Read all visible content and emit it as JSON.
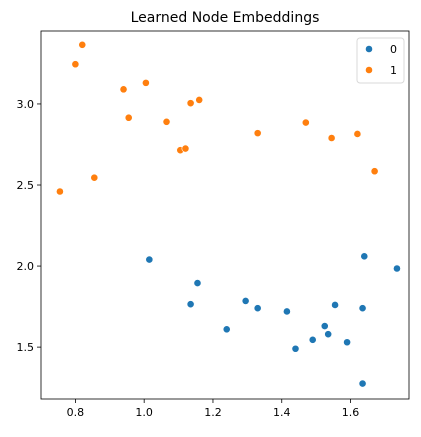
{
  "chart_data": {
    "type": "scatter",
    "title": "Learned Node Embeddings",
    "xlabel": "",
    "ylabel": "",
    "xlim": [
      0.7,
      1.77
    ],
    "ylim": [
      1.18,
      3.45
    ],
    "xticks": [
      0.8,
      1.0,
      1.2,
      1.4,
      1.6
    ],
    "xtick_labels": [
      "0.8",
      "1.0",
      "1.2",
      "1.4",
      "1.6"
    ],
    "yticks": [
      1.5,
      2.0,
      2.5,
      3.0
    ],
    "ytick_labels": [
      "1.5",
      "2.0",
      "2.5",
      "3.0"
    ],
    "grid": false,
    "legend_position": "top-right",
    "series": [
      {
        "name": "0",
        "color": "#1f77b4",
        "points": [
          [
            1.015,
            2.04
          ],
          [
            1.135,
            1.765
          ],
          [
            1.155,
            1.895
          ],
          [
            1.24,
            1.61
          ],
          [
            1.295,
            1.785
          ],
          [
            1.33,
            1.74
          ],
          [
            1.415,
            1.72
          ],
          [
            1.44,
            1.49
          ],
          [
            1.49,
            1.545
          ],
          [
            1.525,
            1.63
          ],
          [
            1.535,
            1.58
          ],
          [
            1.555,
            1.76
          ],
          [
            1.59,
            1.53
          ],
          [
            1.635,
            1.74
          ],
          [
            1.64,
            2.06
          ],
          [
            1.635,
            1.275
          ],
          [
            1.735,
            1.985
          ]
        ]
      },
      {
        "name": "1",
        "color": "#ff7f0e",
        "points": [
          [
            0.755,
            2.46
          ],
          [
            0.8,
            3.245
          ],
          [
            0.82,
            3.365
          ],
          [
            0.855,
            2.545
          ],
          [
            0.94,
            3.09
          ],
          [
            0.955,
            2.915
          ],
          [
            1.005,
            3.13
          ],
          [
            1.065,
            2.89
          ],
          [
            1.105,
            2.715
          ],
          [
            1.12,
            2.725
          ],
          [
            1.135,
            3.005
          ],
          [
            1.16,
            3.025
          ],
          [
            1.33,
            2.82
          ],
          [
            1.47,
            2.885
          ],
          [
            1.545,
            2.79
          ],
          [
            1.62,
            2.815
          ],
          [
            1.67,
            2.585
          ]
        ]
      }
    ]
  }
}
